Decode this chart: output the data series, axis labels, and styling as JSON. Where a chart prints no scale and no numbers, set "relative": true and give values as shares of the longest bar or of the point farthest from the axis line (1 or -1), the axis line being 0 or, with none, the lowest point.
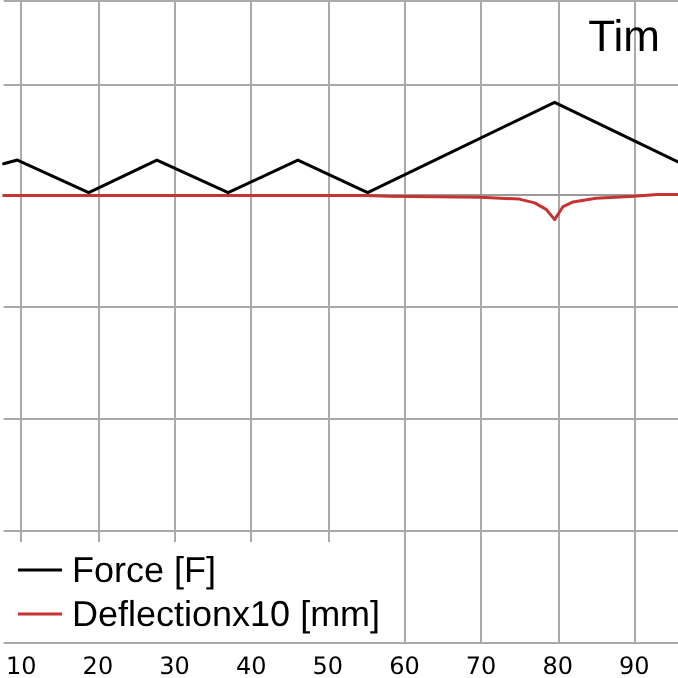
{
  "chart_data": {
    "type": "line",
    "title": "Tim",
    "relative": true,
    "xlim": [
      7.7,
      95.7
    ],
    "xticks": [
      10,
      20,
      30,
      40,
      50,
      60,
      70,
      80,
      90
    ],
    "grid": true,
    "legend": "bottom left",
    "marker": "none",
    "line_style": "solid",
    "series": [
      {
        "name": "Force [F]",
        "color": "#000000",
        "x": [
          7.7,
          9.5,
          18.8,
          27.7,
          37.0,
          46.1,
          55.2,
          79.6,
          95.7
        ],
        "values": [
          0.34,
          0.38,
          0.03,
          0.38,
          0.03,
          0.38,
          0.03,
          1,
          0.36
        ]
      },
      {
        "name": "Deflectionx10 [mm]",
        "color": "#c83232",
        "x": [
          7.7,
          55,
          58,
          70,
          75,
          77,
          78.5,
          79.6,
          80.7,
          82,
          85,
          90,
          93,
          95.7
        ],
        "values": [
          0,
          0,
          -0.01,
          -0.02,
          -0.04,
          -0.08,
          -0.15,
          -0.26,
          -0.12,
          -0.07,
          -0.03,
          -0.01,
          0.01,
          0.01
        ]
      }
    ]
  }
}
